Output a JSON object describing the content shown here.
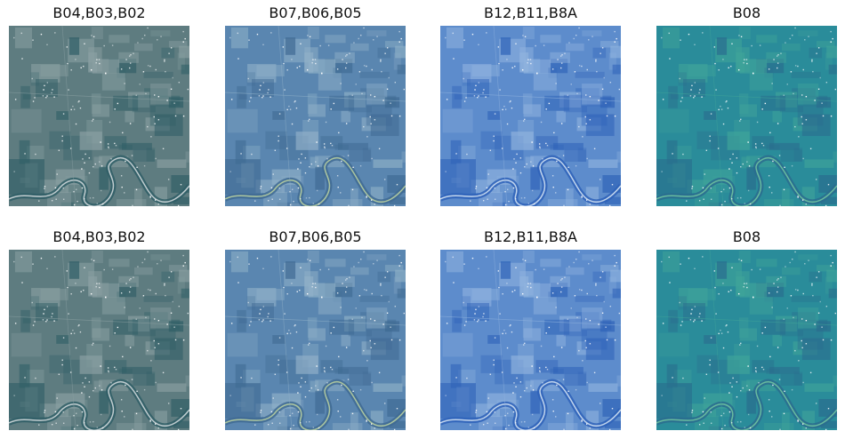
{
  "panels": [
    {
      "title": "B04,B03,B02",
      "palette": {
        "base": "#5e7c80",
        "dark": "#2f5e66",
        "light": "#8aa0a2",
        "river": "#cfd8da"
      }
    },
    {
      "title": "B07,B06,B05",
      "palette": {
        "base": "#5a86b0",
        "dark": "#3f6a93",
        "light": "#8fb0c8",
        "river": "#b8cfa0"
      }
    },
    {
      "title": "B12,B11,B8A",
      "palette": {
        "base": "#5d8ccc",
        "dark": "#2e62b8",
        "light": "#8fb2de",
        "river": "#cfe0f2"
      }
    },
    {
      "title": "B08",
      "palette": {
        "base": "#2a8c9a",
        "dark": "#2a6c8e",
        "light": "#3fa39a",
        "river": "#6fc2a0"
      }
    },
    {
      "title": "B04,B03,B02",
      "palette": {
        "base": "#5e7c80",
        "dark": "#2f5e66",
        "light": "#8aa0a2",
        "river": "#cfd8da"
      }
    },
    {
      "title": "B07,B06,B05",
      "palette": {
        "base": "#5a86b0",
        "dark": "#3f6a93",
        "light": "#8fb0c8",
        "river": "#b8cfa0"
      }
    },
    {
      "title": "B12,B11,B8A",
      "palette": {
        "base": "#5d8ccc",
        "dark": "#2e62b8",
        "light": "#8fb2de",
        "river": "#cfe0f2"
      }
    },
    {
      "title": "B08",
      "palette": {
        "base": "#2a8c9a",
        "dark": "#2a6c8e",
        "light": "#3fa39a",
        "river": "#6fc2a0"
      }
    }
  ]
}
